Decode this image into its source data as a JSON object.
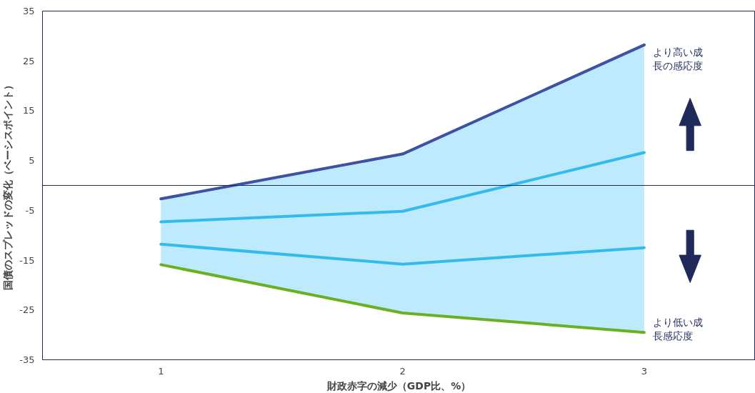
{
  "chart_data": {
    "type": "line",
    "xlabel": "財政赤字の減少（GDP比、%）",
    "ylabel": "国債のスプレッドの変化（ベーシスポイント）",
    "x": [
      1,
      2,
      3
    ],
    "xlim": [
      0.51,
      3.46
    ],
    "xticks": [
      1,
      2,
      3
    ],
    "ylim": [
      -35,
      35
    ],
    "yticks": [
      -35,
      -25,
      -15,
      -5,
      5,
      15,
      25,
      35
    ],
    "grid": false,
    "series": [
      {
        "color": "#3f51a3",
        "values": [
          -2.7,
          6.3,
          28.2
        ]
      },
      {
        "color": "#33bbee",
        "values": [
          -7.3,
          -5.2,
          6.6
        ],
        "lower": [
          -15.9,
          -25.6,
          -29.5
        ],
        "upper": [
          -2.7,
          6.3,
          28.2
        ]
      },
      {
        "color": "#33bbee",
        "values": [
          -11.8,
          -15.8,
          -12.5
        ]
      },
      {
        "color": "#6ab023",
        "values": [
          -15.9,
          -25.6,
          -29.5
        ]
      }
    ],
    "ref_lines": [
      {
        "axis": "y",
        "value": 0,
        "color": "#1f2a5a"
      }
    ],
    "annotations": [
      {
        "text": "より高い成長の感応度",
        "x": 3,
        "y": 28.2
      },
      {
        "text": "より低い成長感応度",
        "x": 3,
        "y": -29.5
      }
    ]
  }
}
